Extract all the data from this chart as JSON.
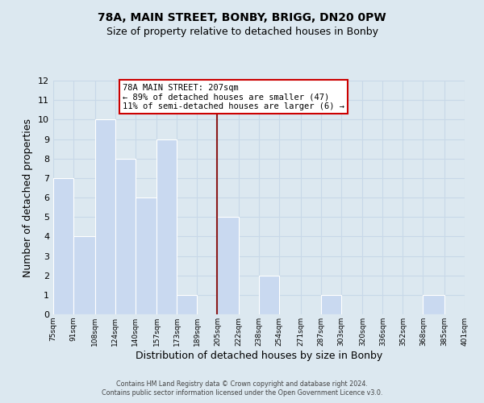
{
  "title": "78A, MAIN STREET, BONBY, BRIGG, DN20 0PW",
  "subtitle": "Size of property relative to detached houses in Bonby",
  "xlabel": "Distribution of detached houses by size in Bonby",
  "ylabel": "Number of detached properties",
  "bar_edges": [
    75,
    91,
    108,
    124,
    140,
    157,
    173,
    189,
    205,
    222,
    238,
    254,
    271,
    287,
    303,
    320,
    336,
    352,
    368,
    385,
    401
  ],
  "bar_heights": [
    7,
    4,
    10,
    8,
    6,
    9,
    1,
    0,
    5,
    0,
    2,
    0,
    0,
    1,
    0,
    0,
    0,
    0,
    1,
    0
  ],
  "tick_labels": [
    "75sqm",
    "91sqm",
    "108sqm",
    "124sqm",
    "140sqm",
    "157sqm",
    "173sqm",
    "189sqm",
    "205sqm",
    "222sqm",
    "238sqm",
    "254sqm",
    "271sqm",
    "287sqm",
    "303sqm",
    "320sqm",
    "336sqm",
    "352sqm",
    "368sqm",
    "385sqm",
    "401sqm"
  ],
  "bar_color": "#c9d9f0",
  "bar_edge_color": "#ffffff",
  "reference_line_x": 205,
  "reference_line_color": "#8b1a1a",
  "ylim": [
    0,
    12
  ],
  "yticks": [
    0,
    1,
    2,
    3,
    4,
    5,
    6,
    7,
    8,
    9,
    10,
    11,
    12
  ],
  "annotation_title": "78A MAIN STREET: 207sqm",
  "annotation_line1": "← 89% of detached houses are smaller (47)",
  "annotation_line2": "11% of semi-detached houses are larger (6) →",
  "annotation_box_color": "#ffffff",
  "annotation_box_edge_color": "#cc0000",
  "grid_color": "#c8d8e8",
  "background_color": "#dce8f0",
  "footer_line1": "Contains HM Land Registry data © Crown copyright and database right 2024.",
  "footer_line2": "Contains public sector information licensed under the Open Government Licence v3.0."
}
